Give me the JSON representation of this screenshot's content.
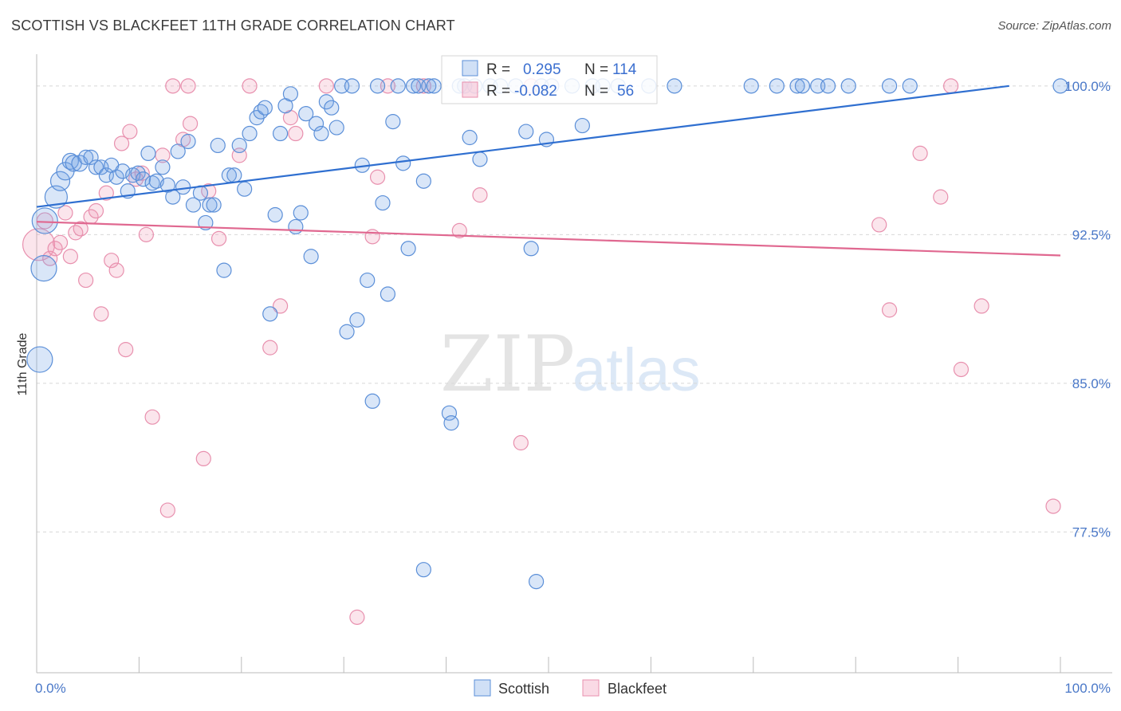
{
  "title": "SCOTTISH VS BLACKFEET 11TH GRADE CORRELATION CHART",
  "source": "Source: ZipAtlas.com",
  "watermark": {
    "zip": "ZIP",
    "atlas": "atlas"
  },
  "colors": {
    "scottish_fill": "rgba(120,165,230,0.28)",
    "scottish_stroke": "#5b8fd8",
    "scottish_line": "#2f6fd0",
    "blackfeet_fill": "rgba(240,150,180,0.25)",
    "blackfeet_stroke": "#e890ae",
    "blackfeet_line": "#e06890",
    "grid": "#d8d8d8"
  },
  "legend": {
    "r_label": "R =",
    "n_label": "N =",
    "rows": [
      {
        "r": "0.295",
        "n": "114"
      },
      {
        "r": "-0.082",
        "n": "56"
      }
    ]
  },
  "chart_data": {
    "type": "scatter",
    "xlabel": "",
    "ylabel": "11th Grade",
    "xlim": [
      0,
      100
    ],
    "ylim": [
      70.4,
      101.2
    ],
    "x_tick_labels": [
      "0.0%",
      "100.0%"
    ],
    "y_ticks": [
      77.5,
      85.0,
      92.5,
      100.0
    ],
    "y_tick_labels": [
      "77.5%",
      "85.0%",
      "92.5%",
      "100.0%"
    ],
    "grid": "horizontal dashed",
    "legend_position": "top-center",
    "series": [
      {
        "name": "Scottish",
        "trend": {
          "x": [
            0,
            95
          ],
          "y": [
            93.9,
            100.0
          ]
        },
        "points": [
          [
            0.3,
            86.2,
            16
          ],
          [
            0.8,
            93.2,
            16
          ],
          [
            0.7,
            90.8,
            16
          ],
          [
            1.9,
            94.4,
            14
          ],
          [
            2.3,
            95.2,
            12
          ],
          [
            2.8,
            95.7,
            11
          ],
          [
            3.3,
            96.2,
            10
          ],
          [
            3.6,
            96.1,
            10
          ],
          [
            4.2,
            96.1,
            10
          ],
          [
            4.8,
            96.4,
            9
          ],
          [
            5.3,
            96.4,
            9
          ],
          [
            5.8,
            95.9,
            9
          ],
          [
            6.3,
            95.9,
            9
          ],
          [
            6.8,
            95.5,
            9
          ],
          [
            7.3,
            96.0,
            9
          ],
          [
            7.8,
            95.4,
            9
          ],
          [
            8.4,
            95.7,
            9
          ],
          [
            8.9,
            94.7,
            9
          ],
          [
            9.4,
            95.5,
            9
          ],
          [
            9.9,
            95.6,
            9
          ],
          [
            10.4,
            95.3,
            9
          ],
          [
            10.9,
            96.6,
            9
          ],
          [
            11.3,
            95.1,
            9
          ],
          [
            11.7,
            95.2,
            9
          ],
          [
            12.3,
            95.9,
            9
          ],
          [
            12.8,
            95.0,
            9
          ],
          [
            13.3,
            94.4,
            9
          ],
          [
            13.8,
            96.7,
            9
          ],
          [
            14.3,
            94.9,
            9
          ],
          [
            14.8,
            97.2,
            9
          ],
          [
            15.3,
            94.0,
            9
          ],
          [
            16.0,
            94.6,
            9
          ],
          [
            16.5,
            93.1,
            9
          ],
          [
            16.9,
            94.0,
            9
          ],
          [
            17.3,
            94.0,
            9
          ],
          [
            17.7,
            97.0,
            9
          ],
          [
            18.3,
            90.7,
            9
          ],
          [
            18.8,
            95.5,
            9
          ],
          [
            19.3,
            95.5,
            9
          ],
          [
            19.8,
            97.0,
            9
          ],
          [
            20.3,
            94.8,
            9
          ],
          [
            20.8,
            97.6,
            9
          ],
          [
            21.5,
            98.4,
            9
          ],
          [
            21.9,
            98.7,
            9
          ],
          [
            22.3,
            98.9,
            9
          ],
          [
            22.8,
            88.5,
            9
          ],
          [
            23.3,
            93.5,
            9
          ],
          [
            23.8,
            97.6,
            9
          ],
          [
            24.3,
            99.0,
            9
          ],
          [
            24.8,
            99.6,
            9
          ],
          [
            25.3,
            92.9,
            9
          ],
          [
            25.8,
            93.6,
            9
          ],
          [
            26.3,
            98.6,
            9
          ],
          [
            26.8,
            91.4,
            9
          ],
          [
            27.3,
            98.1,
            9
          ],
          [
            27.8,
            97.6,
            9
          ],
          [
            28.3,
            99.2,
            9
          ],
          [
            28.8,
            98.9,
            9
          ],
          [
            29.3,
            97.9,
            9
          ],
          [
            29.8,
            100.0,
            9
          ],
          [
            30.3,
            87.6,
            9
          ],
          [
            30.8,
            100.0,
            9
          ],
          [
            31.3,
            88.2,
            9
          ],
          [
            31.8,
            96.0,
            9
          ],
          [
            32.3,
            90.2,
            9
          ],
          [
            32.8,
            84.1,
            9
          ],
          [
            33.3,
            100.0,
            9
          ],
          [
            33.8,
            94.1,
            9
          ],
          [
            34.3,
            89.5,
            9
          ],
          [
            34.8,
            98.2,
            9
          ],
          [
            35.3,
            100.0,
            9
          ],
          [
            35.8,
            96.1,
            9
          ],
          [
            36.3,
            91.8,
            9
          ],
          [
            36.8,
            100.0,
            9
          ],
          [
            37.3,
            100.0,
            9
          ],
          [
            37.8,
            95.2,
            9
          ],
          [
            38.3,
            100.0,
            9
          ],
          [
            38.8,
            100.0,
            9
          ],
          [
            40.3,
            83.5,
            9
          ],
          [
            40.5,
            83.0,
            9
          ],
          [
            41.3,
            100.0,
            9
          ],
          [
            41.8,
            100.0,
            9
          ],
          [
            42.3,
            97.4,
            9
          ],
          [
            42.8,
            100.0,
            9
          ],
          [
            43.3,
            96.3,
            9
          ],
          [
            44.3,
            100.0,
            9
          ],
          [
            45.3,
            100.0,
            9
          ],
          [
            46.8,
            100.0,
            9
          ],
          [
            47.8,
            97.7,
            9
          ],
          [
            48.3,
            91.8,
            9
          ],
          [
            48.8,
            75.0,
            9
          ],
          [
            49.3,
            100.0,
            9
          ],
          [
            49.8,
            97.3,
            9
          ],
          [
            50.3,
            100.0,
            9
          ],
          [
            52.3,
            100.0,
            9
          ],
          [
            53.3,
            98.0,
            9
          ],
          [
            54.3,
            100.0,
            9
          ],
          [
            55.3,
            100.0,
            9
          ],
          [
            56.8,
            100.0,
            9
          ],
          [
            59.8,
            100.0,
            9
          ],
          [
            62.3,
            100.0,
            9
          ],
          [
            69.8,
            100.0,
            9
          ],
          [
            72.3,
            100.0,
            9
          ],
          [
            74.3,
            100.0,
            9
          ],
          [
            74.8,
            100.0,
            9
          ],
          [
            76.3,
            100.0,
            9
          ],
          [
            77.3,
            100.0,
            9
          ],
          [
            79.3,
            100.0,
            9
          ],
          [
            83.3,
            100.0,
            9
          ],
          [
            85.3,
            100.0,
            9
          ],
          [
            100.0,
            100.0,
            9
          ],
          [
            37.8,
            75.6,
            9
          ]
        ]
      },
      {
        "name": "Blackfeet",
        "trend": {
          "x": [
            0,
            100
          ],
          "y": [
            93.15,
            91.45
          ]
        },
        "points": [
          [
            0.2,
            92.0,
            20
          ],
          [
            0.8,
            93.2,
            10
          ],
          [
            1.3,
            91.3,
            9
          ],
          [
            1.8,
            91.8,
            9
          ],
          [
            2.3,
            92.1,
            9
          ],
          [
            2.8,
            93.6,
            9
          ],
          [
            3.3,
            91.4,
            9
          ],
          [
            3.8,
            92.6,
            9
          ],
          [
            4.3,
            92.8,
            9
          ],
          [
            4.8,
            90.2,
            9
          ],
          [
            5.3,
            93.4,
            9
          ],
          [
            5.8,
            93.7,
            9
          ],
          [
            6.3,
            88.5,
            9
          ],
          [
            6.8,
            94.6,
            9
          ],
          [
            7.3,
            91.2,
            9
          ],
          [
            7.8,
            90.7,
            9
          ],
          [
            8.3,
            97.1,
            9
          ],
          [
            8.7,
            86.7,
            9
          ],
          [
            9.1,
            97.7,
            9
          ],
          [
            9.7,
            95.3,
            9
          ],
          [
            10.3,
            95.6,
            9
          ],
          [
            10.7,
            92.5,
            9
          ],
          [
            11.3,
            83.3,
            9
          ],
          [
            12.3,
            96.5,
            9
          ],
          [
            12.8,
            78.6,
            9
          ],
          [
            13.3,
            100.0,
            9
          ],
          [
            14.3,
            97.3,
            9
          ],
          [
            14.8,
            100.0,
            9
          ],
          [
            15.0,
            98.1,
            9
          ],
          [
            16.3,
            81.2,
            9
          ],
          [
            16.8,
            94.7,
            9
          ],
          [
            17.8,
            92.3,
            9
          ],
          [
            19.8,
            96.5,
            9
          ],
          [
            20.8,
            100.0,
            9
          ],
          [
            22.8,
            86.8,
            9
          ],
          [
            23.8,
            88.9,
            9
          ],
          [
            24.8,
            98.4,
            9
          ],
          [
            25.3,
            97.6,
            9
          ],
          [
            28.3,
            100.0,
            9
          ],
          [
            31.3,
            73.2,
            9
          ],
          [
            32.8,
            92.4,
            9
          ],
          [
            33.3,
            95.4,
            9
          ],
          [
            34.3,
            100.0,
            9
          ],
          [
            37.8,
            100.0,
            9
          ],
          [
            41.3,
            92.7,
            9
          ],
          [
            43.3,
            94.5,
            9
          ],
          [
            47.3,
            82.0,
            9
          ],
          [
            48.3,
            100.0,
            9
          ],
          [
            82.3,
            93.0,
            9
          ],
          [
            83.3,
            88.7,
            9
          ],
          [
            86.3,
            96.6,
            9
          ],
          [
            88.3,
            94.4,
            9
          ],
          [
            89.3,
            100.0,
            9
          ],
          [
            90.3,
            85.7,
            9
          ],
          [
            92.3,
            88.9,
            9
          ],
          [
            99.3,
            78.8,
            9
          ]
        ]
      }
    ]
  }
}
